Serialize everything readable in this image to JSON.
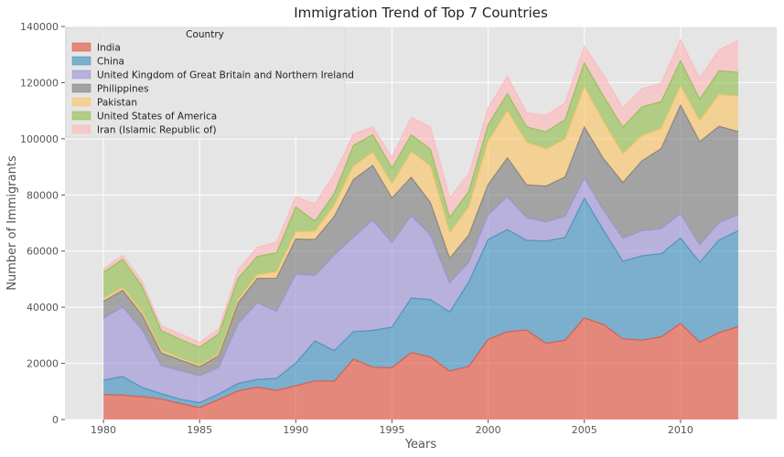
{
  "chart_data": {
    "type": "area",
    "stacked": true,
    "title": "Immigration Trend of Top 7 Countries",
    "xlabel": "Years",
    "ylabel": "Number of Immigrants",
    "xlim": [
      1978,
      2015
    ],
    "ylim": [
      0,
      140000
    ],
    "x_ticks": [
      1980,
      1985,
      1990,
      1995,
      2000,
      2005,
      2010
    ],
    "y_ticks": [
      0,
      20000,
      40000,
      60000,
      80000,
      100000,
      120000,
      140000
    ],
    "grid": true,
    "legend_title": "Country",
    "legend_position": "top-left",
    "x": [
      1980,
      1981,
      1982,
      1983,
      1984,
      1985,
      1986,
      1987,
      1988,
      1989,
      1990,
      1991,
      1992,
      1993,
      1994,
      1995,
      1996,
      1997,
      1998,
      1999,
      2000,
      2001,
      2002,
      2003,
      2004,
      2005,
      2006,
      2007,
      2008,
      2009,
      2010,
      2011,
      2012,
      2013
    ],
    "series": [
      {
        "name": "India",
        "color": "#E24A33",
        "values": [
          8880,
          8670,
          8147,
          7338,
          5704,
          4211,
          7150,
          10189,
          11522,
          10343,
          12041,
          13734,
          13673,
          21496,
          18620,
          18489,
          23859,
          22268,
          17241,
          18974,
          28572,
          31223,
          31889,
          27155,
          28235,
          36210,
          33848,
          28742,
          28261,
          29456,
          34235,
          27509,
          30933,
          33087
        ]
      },
      {
        "name": "China",
        "color": "#348ABD",
        "values": [
          5123,
          6682,
          3308,
          1863,
          1527,
          1816,
          1960,
          2643,
          2758,
          4323,
          8076,
          14255,
          10846,
          9817,
          13128,
          14398,
          19415,
          20475,
          21049,
          30069,
          35529,
          36434,
          31961,
          36439,
          36619,
          42584,
          33518,
          27642,
          30037,
          29622,
          30391,
          28502,
          33024,
          34129
        ]
      },
      {
        "name": "United Kingdom of Great Britain and Northern Ireland",
        "color": "#988ED5",
        "values": [
          22045,
          24796,
          20620,
          10015,
          10170,
          9564,
          9470,
          21337,
          27359,
          23795,
          31668,
          23380,
          34123,
          33720,
          39231,
          30145,
          29322,
          22965,
          10367,
          7045,
          8840,
          11728,
          8046,
          6797,
          7533,
          7258,
          7140,
          8216,
          8979,
          8876,
          8724,
          6204,
          6195,
          5827
        ]
      },
      {
        "name": "Philippines",
        "color": "#777777",
        "values": [
          6051,
          5921,
          5249,
          4562,
          3801,
          3150,
          4166,
          7360,
          8639,
          11865,
          12509,
          12718,
          13670,
          20479,
          19532,
          15864,
          13692,
          11549,
          8735,
          9734,
          10763,
          13836,
          11707,
          12758,
          14004,
          18139,
          18400,
          19837,
          24887,
          28573,
          38617,
          36765,
          34315,
          29544
        ]
      },
      {
        "name": "Pakistan",
        "color": "#FBC15E",
        "values": [
          978,
          972,
          1201,
          900,
          668,
          514,
          691,
          1072,
          1334,
          2261,
          2470,
          3079,
          4071,
          4777,
          4666,
          4994,
          9125,
          13073,
          9068,
          9979,
          15400,
          16708,
          15110,
          13205,
          13399,
          14314,
          13127,
          10124,
          8994,
          7217,
          6811,
          7468,
          11227,
          12603
        ]
      },
      {
        "name": "United States of America",
        "color": "#8EBA42",
        "values": [
          9378,
          10030,
          9074,
          7100,
          6661,
          6543,
          7074,
          7705,
          6469,
          6790,
          8895,
          3486,
          4124,
          7373,
          6300,
          5665,
          6015,
          5977,
          5487,
          5570,
          5903,
          6186,
          5512,
          6110,
          7035,
          8590,
          9150,
          9530,
          10210,
          9540,
          9010,
          7650,
          8500,
          8510
        ]
      },
      {
        "name": "Iran (Islamic Republic of)",
        "color": "#FFB5B8",
        "values": [
          1172,
          1429,
          1822,
          1592,
          1977,
          1648,
          1794,
          2989,
          3273,
          3781,
          3655,
          6250,
          6814,
          3959,
          2785,
          3956,
          6205,
          7982,
          7057,
          6208,
          5884,
          6169,
          5001,
          5921,
          5914,
          5837,
          7480,
          6974,
          6475,
          6580,
          7477,
          7479,
          7534,
          11291
        ]
      }
    ]
  }
}
